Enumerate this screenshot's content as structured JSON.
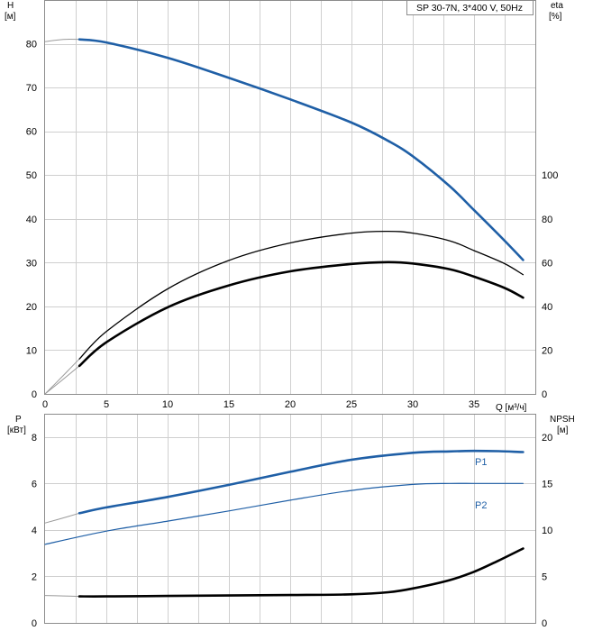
{
  "chart_data": [
    {
      "type": "line",
      "title": "SP 30-7N, 3*400 V, 50Hz",
      "xlabel": "Q [м³/ч]",
      "ylabel_left": [
        "H",
        "[м]"
      ],
      "ylabel_right": [
        "eta",
        "[%]"
      ],
      "xlim": [
        0,
        40
      ],
      "x_ticks": [
        0,
        5,
        10,
        15,
        20,
        25,
        30,
        35
      ],
      "ylim_left": [
        0,
        90
      ],
      "y_ticks_left": [
        0,
        10,
        20,
        30,
        40,
        50,
        60,
        70,
        80
      ],
      "ylim_right": [
        0,
        180
      ],
      "y_ticks_right": [
        0,
        20,
        40,
        60,
        80,
        100
      ],
      "grid": true,
      "series": [
        {
          "axis": "left",
          "color": "#1f5fa6",
          "width": 2.6,
          "x": [
            2.8,
            5,
            10,
            15,
            20,
            25,
            28,
            30,
            33,
            35,
            37.5,
            39
          ],
          "y": [
            81,
            80.3,
            76.8,
            72.2,
            67.3,
            62,
            57.8,
            54.3,
            47.5,
            42,
            35,
            30.6
          ],
          "ext_x": [
            0,
            1.5,
            2.8
          ],
          "ext_y": [
            80.5,
            81,
            81
          ]
        },
        {
          "axis": "right",
          "color": "#000000",
          "width": 1.3,
          "x": [
            2.8,
            5,
            10,
            15,
            20,
            25,
            28,
            30,
            33,
            35,
            37.5,
            39
          ],
          "y": [
            16,
            28.5,
            48,
            61,
            69,
            73.5,
            74.3,
            73.5,
            70,
            65.5,
            59.5,
            54.5
          ],
          "ext_x": [
            0,
            1.5,
            2.8
          ],
          "ext_y": [
            0,
            8.5,
            16
          ]
        },
        {
          "axis": "left",
          "color": "#000000",
          "width": 2.6,
          "x": [
            2.8,
            5,
            10,
            15,
            20,
            25,
            28,
            30,
            33,
            35,
            37.5,
            39
          ],
          "y": [
            6.4,
            11.8,
            19.8,
            24.8,
            28,
            29.7,
            30.1,
            29.8,
            28.5,
            26.8,
            24.2,
            22
          ],
          "ext_x": [
            0,
            1.5,
            2.8
          ],
          "ext_y": [
            0,
            3.4,
            6.4
          ]
        }
      ]
    },
    {
      "type": "line",
      "xlim": [
        0,
        40
      ],
      "ylabel_left": [
        "P",
        "[кВт]"
      ],
      "ylabel_right": [
        "NPSH",
        "[м]"
      ],
      "ylim_left": [
        0,
        9
      ],
      "y_ticks_left": [
        0,
        2,
        4,
        6,
        8
      ],
      "ylim_right": [
        0,
        22.5
      ],
      "y_ticks_right": [
        0,
        5,
        10,
        15,
        20
      ],
      "grid": true,
      "series": [
        {
          "name": "P1",
          "axis": "left",
          "color": "#1f5fa6",
          "width": 2.6,
          "x": [
            2.8,
            5,
            10,
            15,
            20,
            25,
            30,
            33,
            35,
            37,
            39
          ],
          "y": [
            4.72,
            4.97,
            5.42,
            5.94,
            6.5,
            7.02,
            7.32,
            7.38,
            7.4,
            7.39,
            7.35
          ],
          "ext_x": [
            0,
            1.5,
            2.8
          ],
          "ext_y": [
            4.3,
            4.52,
            4.72
          ]
        },
        {
          "name": "P2",
          "axis": "left",
          "color": "#1f5fa6",
          "width": 1.2,
          "x": [
            0,
            5,
            10,
            15,
            20,
            25,
            30,
            33,
            35,
            37,
            39
          ],
          "y": [
            3.38,
            3.95,
            4.38,
            4.82,
            5.28,
            5.7,
            5.96,
            6.0,
            6.0,
            6.0,
            6.0
          ]
        },
        {
          "axis": "right",
          "color": "#000000",
          "width": 2.6,
          "x": [
            2.8,
            5,
            10,
            15,
            20,
            25,
            28,
            30,
            33,
            35,
            37,
            39
          ],
          "y": [
            2.85,
            2.85,
            2.9,
            2.95,
            3.0,
            3.07,
            3.3,
            3.7,
            4.6,
            5.5,
            6.7,
            8.0
          ],
          "ext_x": [
            0,
            1.5,
            2.8
          ],
          "ext_y": [
            2.95,
            2.9,
            2.85
          ]
        }
      ]
    }
  ]
}
